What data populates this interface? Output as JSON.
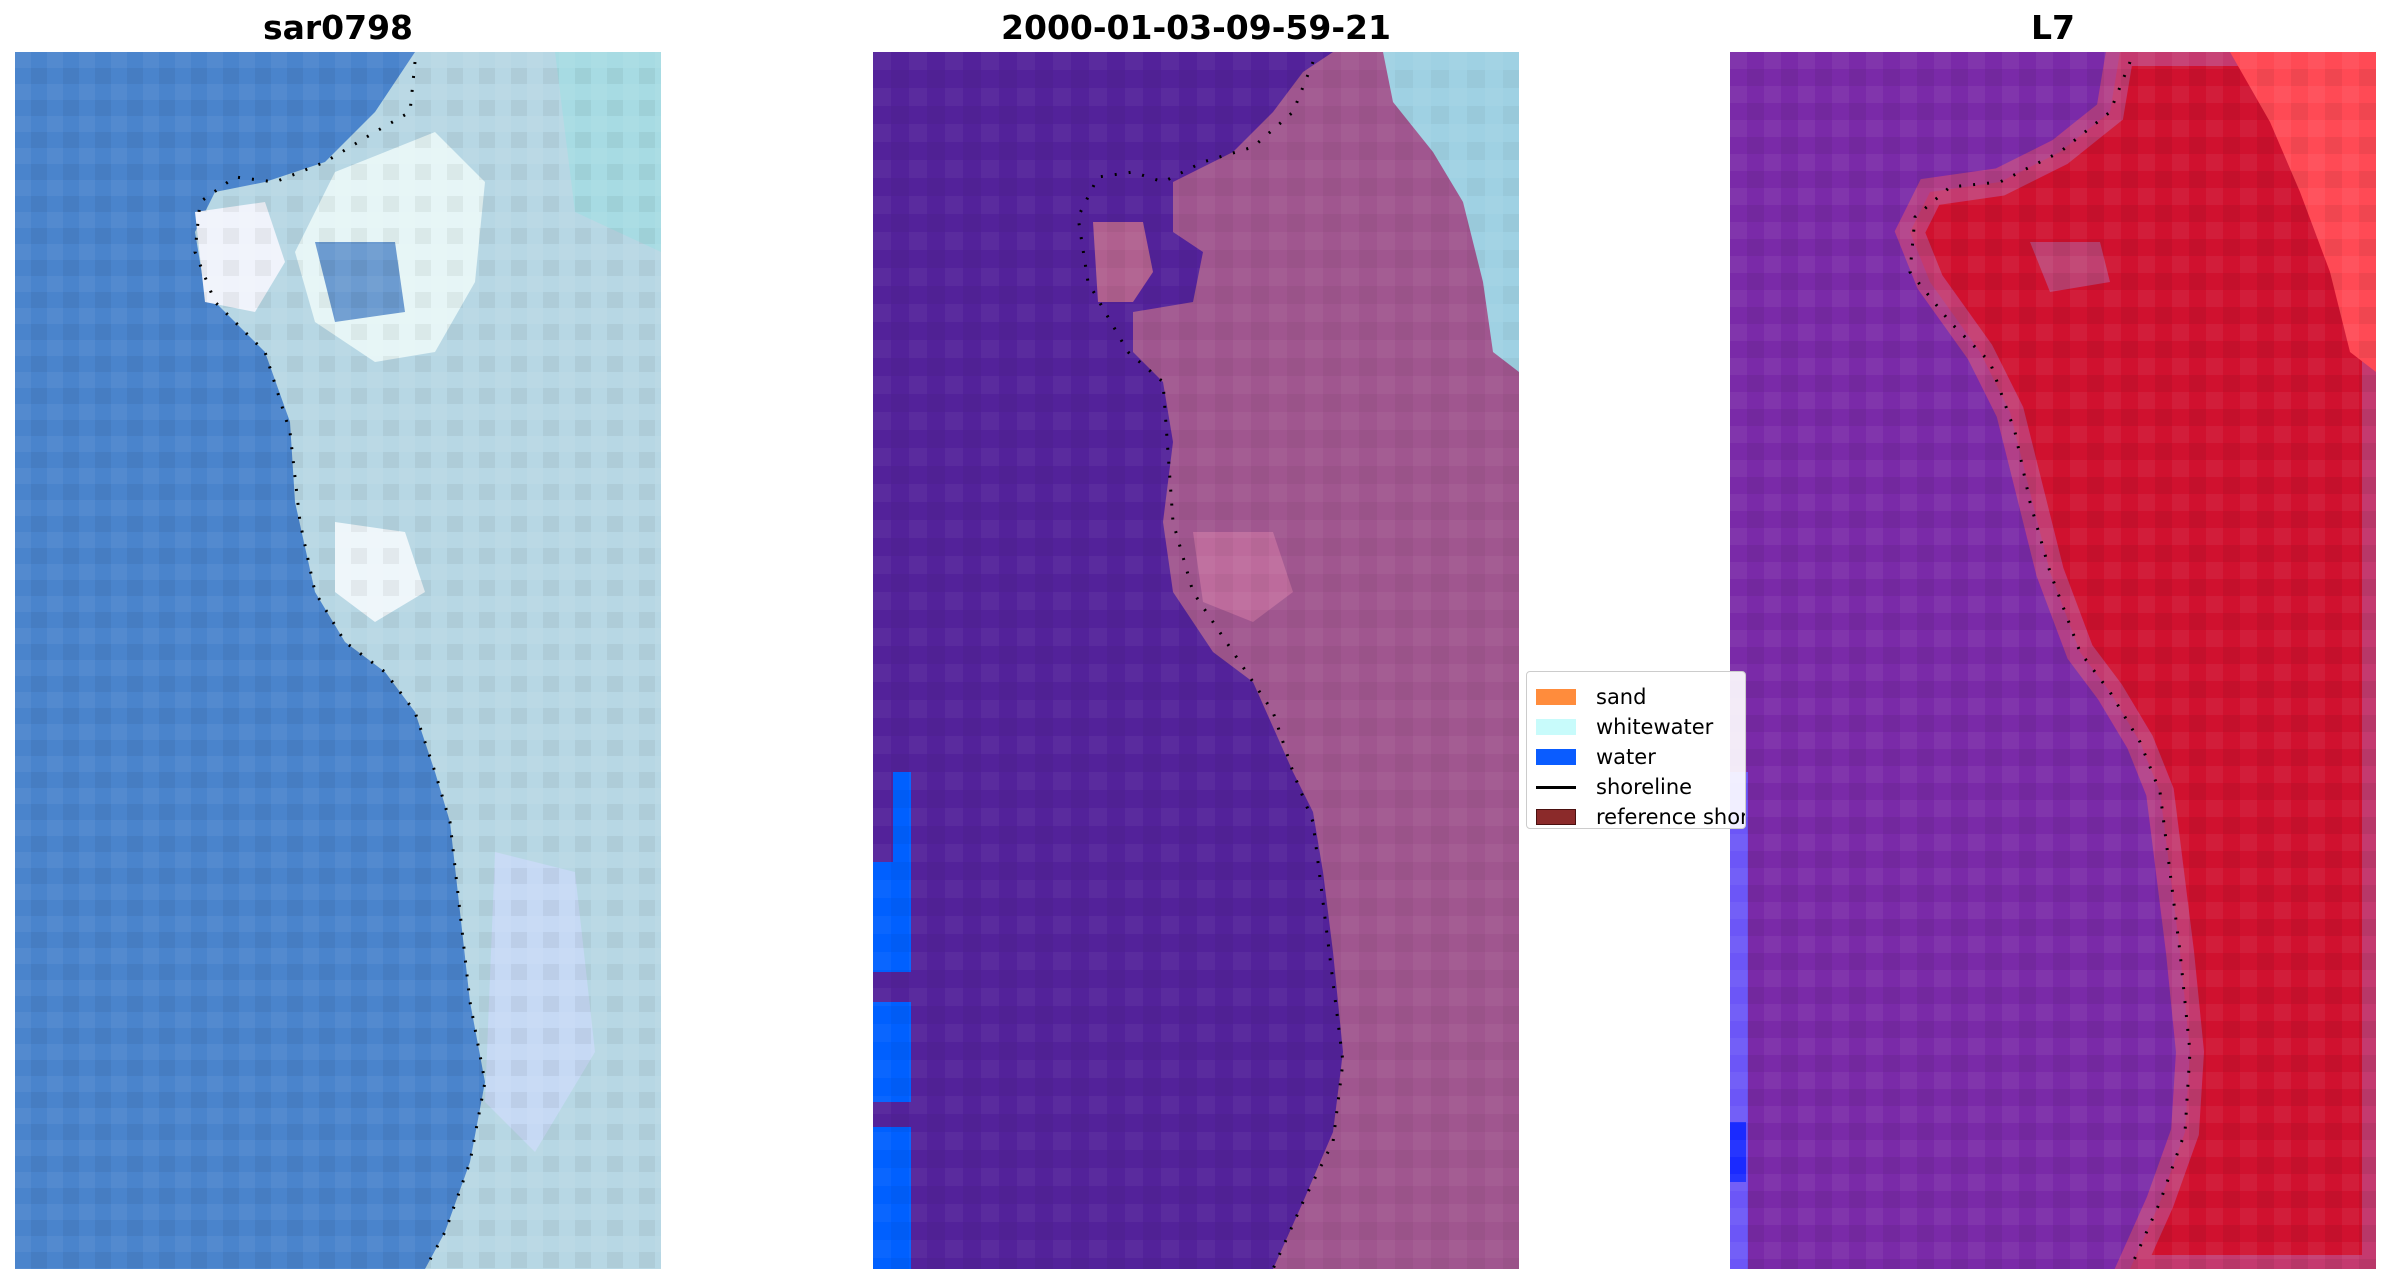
{
  "panels": [
    {
      "title": "sar0798",
      "style": "rgb"
    },
    {
      "title": "2000-01-03-09-59-21",
      "style": "classified"
    },
    {
      "title": "L7",
      "style": "index"
    }
  ],
  "colors": {
    "rgb_water": "#4a84cc",
    "rgb_land": "#b7d7e4",
    "classified_water": "#53229a",
    "classified_land": "#a0568f",
    "classified_whitewater": "#9fd1e3",
    "classified_blue": "#0060ff",
    "index_water": "#7a2aa8",
    "index_land": "#d0112f",
    "shoreline_dots": "#000000"
  },
  "legend": {
    "items": [
      {
        "label": "sand",
        "color": "#ff8c3c"
      },
      {
        "label": "whitewater",
        "color": "#c8fbfb"
      },
      {
        "label": "water",
        "color": "#0a5cff"
      },
      {
        "label": "shoreline",
        "color": "#000000",
        "kind": "line"
      },
      {
        "label": "reference shoreline",
        "color": "#8b2a2a"
      }
    ]
  }
}
